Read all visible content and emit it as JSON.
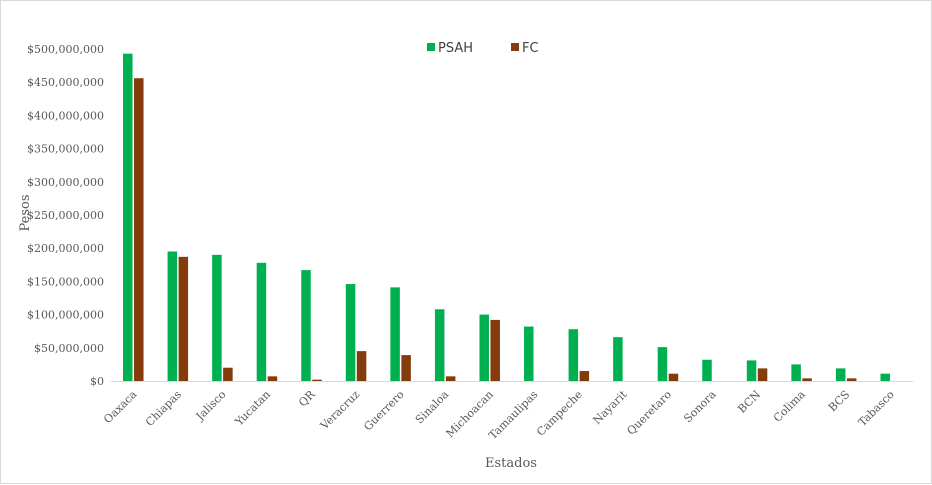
{
  "chart_data": {
    "type": "bar",
    "categories": [
      "Oaxaca",
      "Chiapas",
      "Jalisco",
      "Yucatan",
      "QR",
      "Veracruz",
      "Guerrero",
      "Sinaloa",
      "Michoacan",
      "Tamaulipas",
      "Campeche",
      "Nayarit",
      "Queretaro",
      "Sonora",
      "BCN",
      "Colima",
      "BCS",
      "Tabasco"
    ],
    "series": [
      {
        "name": "PSAH",
        "color": "#00b050",
        "values": [
          493000000,
          195000000,
          190000000,
          178000000,
          167000000,
          146000000,
          141000000,
          108000000,
          100000000,
          82000000,
          78000000,
          66000000,
          51000000,
          32000000,
          31000000,
          25000000,
          19000000,
          11000000
        ]
      },
      {
        "name": "FC",
        "color": "#843c0c",
        "values": [
          456000000,
          187000000,
          20000000,
          7000000,
          2000000,
          45000000,
          39000000,
          7000000,
          92000000,
          0,
          15000000,
          0,
          11000000,
          0,
          19000000,
          4000000,
          4000000,
          0
        ]
      }
    ],
    "xlabel": "Estados",
    "ylabel": "Pesos",
    "ylim": [
      0,
      500000000
    ],
    "yticks": [
      0,
      50000000,
      100000000,
      150000000,
      200000000,
      250000000,
      300000000,
      350000000,
      400000000,
      450000000,
      500000000
    ],
    "ytick_labels": [
      "$0",
      "$50,000,000",
      "$100,000,000",
      "$150,000,000",
      "$200,000,000",
      "$250,000,000",
      "$300,000,000",
      "$350,000,000",
      "$400,000,000",
      "$450,000,000",
      "$500,000,000"
    ],
    "grid": false,
    "legend_position": "top-center"
  }
}
